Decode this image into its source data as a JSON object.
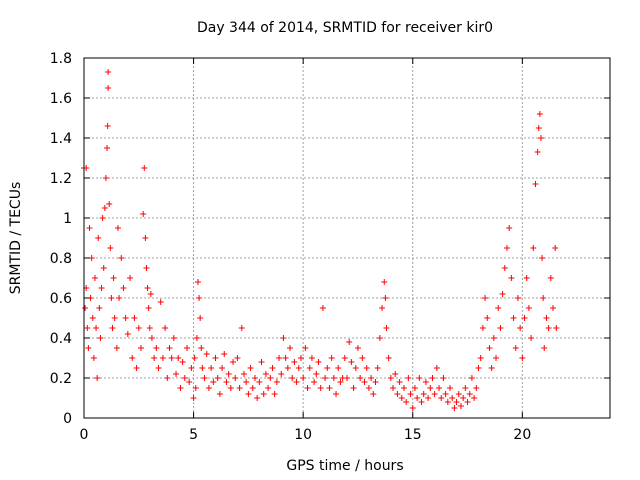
{
  "chart_data": {
    "type": "scatter",
    "title": "Day 344 of 2014, SRMTID for receiver kir0",
    "xlabel": "GPS time / hours",
    "ylabel": "SRMTID / TECUs",
    "xlim": [
      0,
      24
    ],
    "ylim": [
      0,
      1.8
    ],
    "xticks": [
      0,
      5,
      10,
      15,
      20
    ],
    "yticks": [
      0,
      0.2,
      0.4,
      0.6,
      0.8,
      1,
      1.2,
      1.4,
      1.6,
      1.8
    ],
    "ytick_labels": [
      "0",
      "0.2",
      "0.4",
      "0.6",
      "0.8",
      "1",
      "1.2",
      "1.4",
      "1.6",
      "1.8"
    ],
    "grid": true,
    "marker": "plus",
    "color": "#ff0000",
    "series": [
      {
        "name": "SRMTID",
        "points": [
          [
            0.0,
            1.25
          ],
          [
            0.05,
            0.55
          ],
          [
            0.1,
            0.65
          ],
          [
            0.1,
            1.25
          ],
          [
            0.15,
            0.45
          ],
          [
            0.2,
            0.35
          ],
          [
            0.25,
            0.95
          ],
          [
            0.3,
            0.6
          ],
          [
            0.35,
            0.8
          ],
          [
            0.4,
            0.5
          ],
          [
            0.45,
            0.3
          ],
          [
            0.5,
            0.7
          ],
          [
            0.55,
            0.45
          ],
          [
            0.6,
            0.2
          ],
          [
            0.65,
            0.9
          ],
          [
            0.7,
            0.55
          ],
          [
            0.75,
            0.4
          ],
          [
            0.8,
            0.65
          ],
          [
            0.85,
            1.0
          ],
          [
            0.9,
            0.75
          ],
          [
            0.95,
            1.05
          ],
          [
            1.0,
            1.2
          ],
          [
            1.05,
            1.35
          ],
          [
            1.08,
            1.46
          ],
          [
            1.1,
            1.73
          ],
          [
            1.1,
            1.65
          ],
          [
            1.15,
            1.07
          ],
          [
            1.2,
            0.85
          ],
          [
            1.25,
            0.6
          ],
          [
            1.3,
            0.45
          ],
          [
            1.35,
            0.7
          ],
          [
            1.4,
            0.5
          ],
          [
            1.5,
            0.35
          ],
          [
            1.55,
            0.95
          ],
          [
            1.6,
            0.6
          ],
          [
            1.7,
            0.8
          ],
          [
            1.8,
            0.65
          ],
          [
            1.9,
            0.5
          ],
          [
            2.0,
            0.42
          ],
          [
            2.1,
            0.7
          ],
          [
            2.2,
            0.3
          ],
          [
            2.3,
            0.5
          ],
          [
            2.4,
            0.25
          ],
          [
            2.5,
            0.45
          ],
          [
            2.6,
            0.35
          ],
          [
            2.7,
            1.02
          ],
          [
            2.75,
            1.25
          ],
          [
            2.8,
            0.9
          ],
          [
            2.85,
            0.75
          ],
          [
            2.9,
            0.65
          ],
          [
            2.95,
            0.55
          ],
          [
            3.0,
            0.45
          ],
          [
            3.05,
            0.62
          ],
          [
            3.1,
            0.4
          ],
          [
            3.2,
            0.3
          ],
          [
            3.3,
            0.35
          ],
          [
            3.4,
            0.25
          ],
          [
            3.5,
            0.58
          ],
          [
            3.6,
            0.3
          ],
          [
            3.7,
            0.45
          ],
          [
            3.8,
            0.2
          ],
          [
            3.9,
            0.35
          ],
          [
            4.0,
            0.3
          ],
          [
            4.1,
            0.4
          ],
          [
            4.2,
            0.22
          ],
          [
            4.3,
            0.3
          ],
          [
            4.4,
            0.15
          ],
          [
            4.5,
            0.28
          ],
          [
            4.6,
            0.2
          ],
          [
            4.7,
            0.35
          ],
          [
            4.8,
            0.18
          ],
          [
            4.9,
            0.25
          ],
          [
            5.0,
            0.1
          ],
          [
            5.05,
            0.3
          ],
          [
            5.1,
            0.15
          ],
          [
            5.15,
            0.4
          ],
          [
            5.2,
            0.68
          ],
          [
            5.25,
            0.6
          ],
          [
            5.3,
            0.5
          ],
          [
            5.35,
            0.35
          ],
          [
            5.4,
            0.25
          ],
          [
            5.5,
            0.2
          ],
          [
            5.6,
            0.32
          ],
          [
            5.7,
            0.15
          ],
          [
            5.8,
            0.25
          ],
          [
            5.9,
            0.18
          ],
          [
            6.0,
            0.3
          ],
          [
            6.1,
            0.2
          ],
          [
            6.2,
            0.12
          ],
          [
            6.3,
            0.25
          ],
          [
            6.4,
            0.32
          ],
          [
            6.5,
            0.18
          ],
          [
            6.6,
            0.22
          ],
          [
            6.7,
            0.15
          ],
          [
            6.8,
            0.28
          ],
          [
            6.9,
            0.2
          ],
          [
            7.0,
            0.3
          ],
          [
            7.1,
            0.15
          ],
          [
            7.2,
            0.45
          ],
          [
            7.3,
            0.22
          ],
          [
            7.4,
            0.18
          ],
          [
            7.5,
            0.12
          ],
          [
            7.6,
            0.25
          ],
          [
            7.7,
            0.15
          ],
          [
            7.8,
            0.2
          ],
          [
            7.9,
            0.1
          ],
          [
            8.0,
            0.18
          ],
          [
            8.1,
            0.28
          ],
          [
            8.2,
            0.12
          ],
          [
            8.3,
            0.22
          ],
          [
            8.4,
            0.15
          ],
          [
            8.5,
            0.2
          ],
          [
            8.6,
            0.25
          ],
          [
            8.7,
            0.12
          ],
          [
            8.8,
            0.18
          ],
          [
            8.9,
            0.3
          ],
          [
            9.0,
            0.22
          ],
          [
            9.1,
            0.4
          ],
          [
            9.2,
            0.3
          ],
          [
            9.3,
            0.25
          ],
          [
            9.4,
            0.35
          ],
          [
            9.5,
            0.2
          ],
          [
            9.6,
            0.28
          ],
          [
            9.7,
            0.18
          ],
          [
            9.8,
            0.25
          ],
          [
            9.9,
            0.3
          ],
          [
            10.0,
            0.2
          ],
          [
            10.1,
            0.35
          ],
          [
            10.2,
            0.15
          ],
          [
            10.3,
            0.25
          ],
          [
            10.4,
            0.3
          ],
          [
            10.5,
            0.18
          ],
          [
            10.6,
            0.22
          ],
          [
            10.7,
            0.28
          ],
          [
            10.8,
            0.15
          ],
          [
            10.9,
            0.55
          ],
          [
            11.0,
            0.2
          ],
          [
            11.1,
            0.25
          ],
          [
            11.2,
            0.15
          ],
          [
            11.3,
            0.3
          ],
          [
            11.4,
            0.2
          ],
          [
            11.5,
            0.12
          ],
          [
            11.6,
            0.25
          ],
          [
            11.7,
            0.18
          ],
          [
            11.8,
            0.2
          ],
          [
            11.9,
            0.3
          ],
          [
            12.0,
            0.2
          ],
          [
            12.1,
            0.38
          ],
          [
            12.2,
            0.28
          ],
          [
            12.3,
            0.15
          ],
          [
            12.4,
            0.25
          ],
          [
            12.5,
            0.35
          ],
          [
            12.6,
            0.2
          ],
          [
            12.7,
            0.3
          ],
          [
            12.8,
            0.18
          ],
          [
            12.9,
            0.25
          ],
          [
            13.0,
            0.15
          ],
          [
            13.1,
            0.2
          ],
          [
            13.2,
            0.12
          ],
          [
            13.3,
            0.18
          ],
          [
            13.4,
            0.25
          ],
          [
            13.5,
            0.4
          ],
          [
            13.6,
            0.55
          ],
          [
            13.7,
            0.68
          ],
          [
            13.75,
            0.6
          ],
          [
            13.8,
            0.45
          ],
          [
            13.9,
            0.3
          ],
          [
            14.0,
            0.2
          ],
          [
            14.1,
            0.15
          ],
          [
            14.2,
            0.22
          ],
          [
            14.3,
            0.12
          ],
          [
            14.4,
            0.18
          ],
          [
            14.5,
            0.1
          ],
          [
            14.6,
            0.15
          ],
          [
            14.7,
            0.08
          ],
          [
            14.8,
            0.2
          ],
          [
            14.9,
            0.12
          ],
          [
            15.0,
            0.05
          ],
          [
            15.1,
            0.15
          ],
          [
            15.2,
            0.1
          ],
          [
            15.3,
            0.2
          ],
          [
            15.4,
            0.08
          ],
          [
            15.5,
            0.12
          ],
          [
            15.6,
            0.18
          ],
          [
            15.7,
            0.1
          ],
          [
            15.8,
            0.15
          ],
          [
            15.9,
            0.2
          ],
          [
            16.0,
            0.12
          ],
          [
            16.1,
            0.25
          ],
          [
            16.2,
            0.15
          ],
          [
            16.3,
            0.1
          ],
          [
            16.4,
            0.2
          ],
          [
            16.5,
            0.12
          ],
          [
            16.6,
            0.08
          ],
          [
            16.7,
            0.15
          ],
          [
            16.8,
            0.1
          ],
          [
            16.9,
            0.05
          ],
          [
            17.0,
            0.08
          ],
          [
            17.1,
            0.12
          ],
          [
            17.2,
            0.06
          ],
          [
            17.3,
            0.1
          ],
          [
            17.4,
            0.15
          ],
          [
            17.5,
            0.08
          ],
          [
            17.6,
            0.12
          ],
          [
            17.7,
            0.2
          ],
          [
            17.8,
            0.1
          ],
          [
            17.9,
            0.15
          ],
          [
            18.0,
            0.25
          ],
          [
            18.1,
            0.3
          ],
          [
            18.2,
            0.45
          ],
          [
            18.3,
            0.6
          ],
          [
            18.4,
            0.5
          ],
          [
            18.5,
            0.35
          ],
          [
            18.6,
            0.25
          ],
          [
            18.7,
            0.4
          ],
          [
            18.8,
            0.3
          ],
          [
            18.9,
            0.55
          ],
          [
            19.0,
            0.45
          ],
          [
            19.1,
            0.62
          ],
          [
            19.2,
            0.75
          ],
          [
            19.3,
            0.85
          ],
          [
            19.4,
            0.95
          ],
          [
            19.5,
            0.7
          ],
          [
            19.6,
            0.5
          ],
          [
            19.7,
            0.35
          ],
          [
            19.8,
            0.6
          ],
          [
            19.9,
            0.45
          ],
          [
            20.0,
            0.3
          ],
          [
            20.1,
            0.5
          ],
          [
            20.2,
            0.7
          ],
          [
            20.3,
            0.55
          ],
          [
            20.4,
            0.4
          ],
          [
            20.5,
            0.85
          ],
          [
            20.6,
            1.17
          ],
          [
            20.7,
            1.33
          ],
          [
            20.75,
            1.45
          ],
          [
            20.8,
            1.52
          ],
          [
            20.85,
            1.4
          ],
          [
            20.9,
            0.8
          ],
          [
            20.95,
            0.6
          ],
          [
            21.0,
            0.35
          ],
          [
            21.1,
            0.5
          ],
          [
            21.2,
            0.45
          ],
          [
            21.3,
            0.7
          ],
          [
            21.4,
            0.55
          ],
          [
            21.5,
            0.85
          ],
          [
            21.55,
            0.45
          ]
        ]
      }
    ]
  }
}
